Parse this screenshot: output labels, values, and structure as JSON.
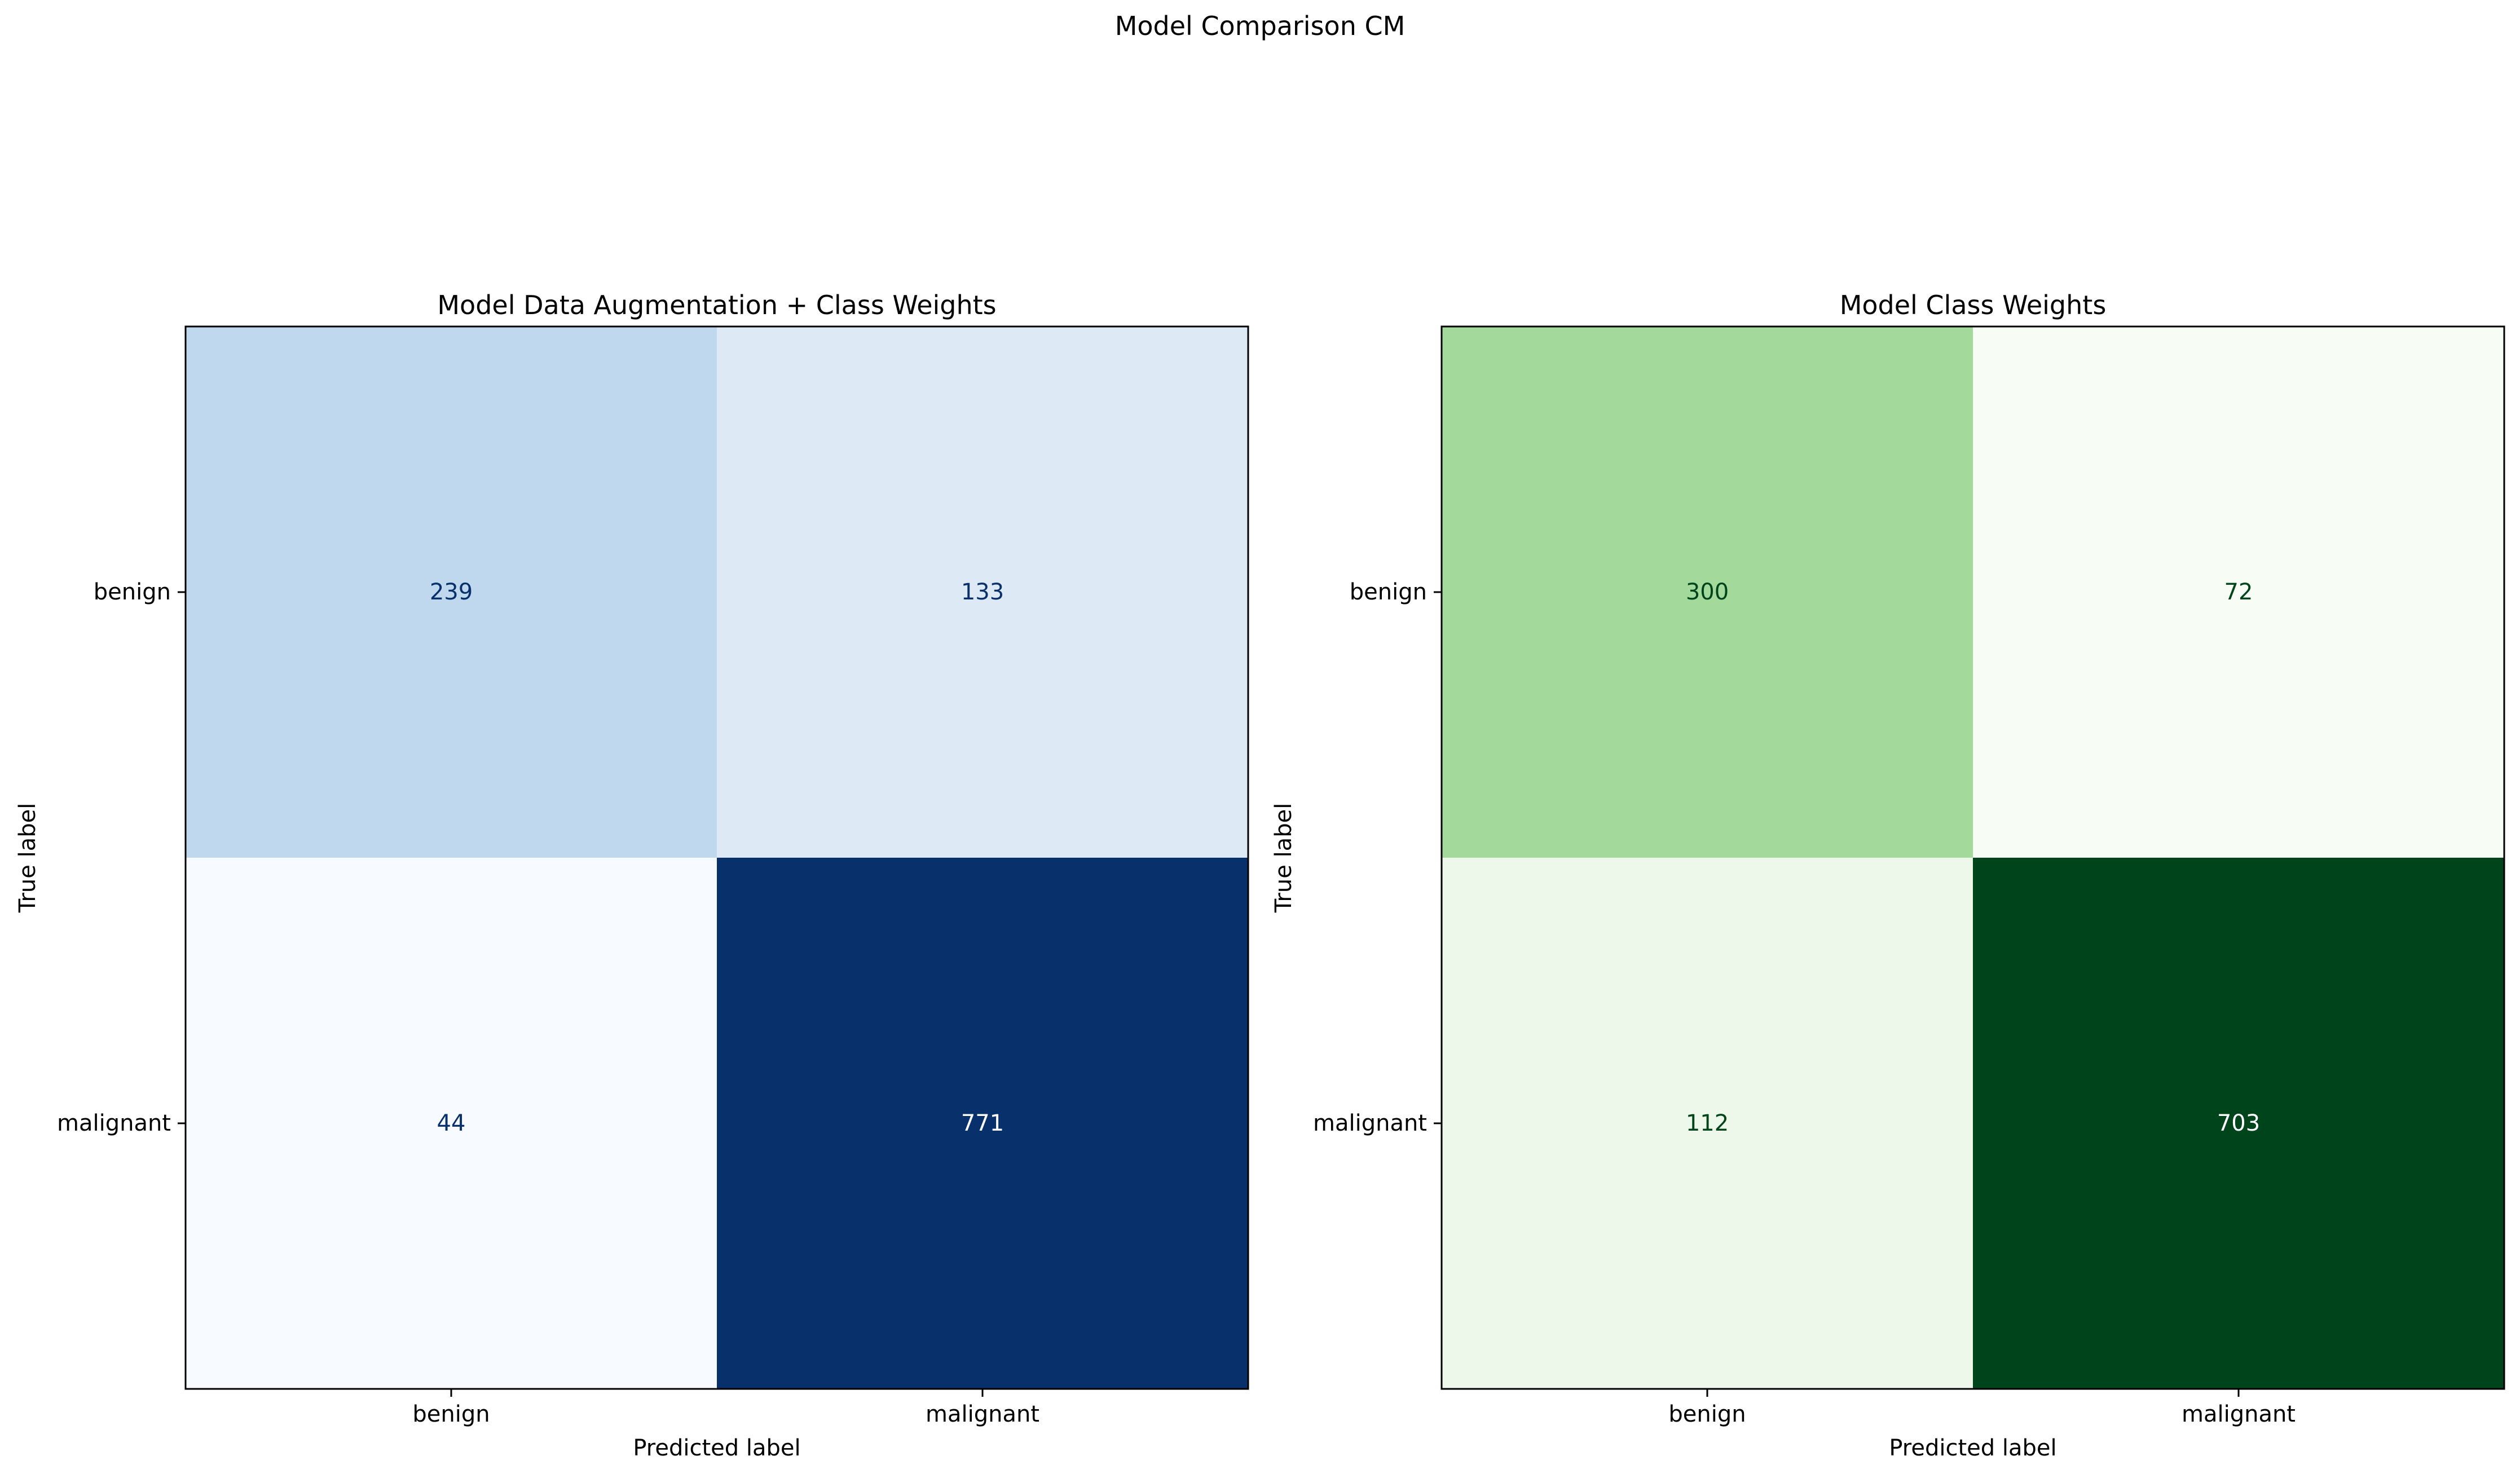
{
  "figure": {
    "title": "Model Comparison CM"
  },
  "chart_data": [
    {
      "type": "heatmap",
      "title": "Model Data Augmentation + Class Weights",
      "xlabel": "Predicted label",
      "ylabel": "True label",
      "x_categories": [
        "benign",
        "malignant"
      ],
      "y_categories": [
        "benign",
        "malignant"
      ],
      "values": [
        [
          239,
          133
        ],
        [
          44,
          771
        ]
      ],
      "colormap": "Blues",
      "low_color": "#f7fbff",
      "high_color": "#08306b",
      "cell_colors": [
        [
          "#c0d8ee",
          "#ddeaf6"
        ],
        [
          "#f7fbff",
          "#08306b"
        ]
      ],
      "dark_text_color": "#08306b",
      "light_text_color": "#ffffff",
      "grid": false,
      "legend": "none"
    },
    {
      "type": "heatmap",
      "title": "Model Class Weights",
      "xlabel": "Predicted label",
      "ylabel": "True label",
      "x_categories": [
        "benign",
        "malignant"
      ],
      "y_categories": [
        "benign",
        "malignant"
      ],
      "values": [
        [
          300,
          72
        ],
        [
          112,
          703
        ]
      ],
      "colormap": "Greens",
      "low_color": "#f7fcf5",
      "high_color": "#00441b",
      "cell_colors": [
        [
          "#a3da9c",
          "#f7fcf5"
        ],
        [
          "#edf7ea",
          "#00441b"
        ]
      ],
      "dark_text_color": "#00441b",
      "light_text_color": "#ffffff",
      "grid": false,
      "legend": "none"
    }
  ]
}
